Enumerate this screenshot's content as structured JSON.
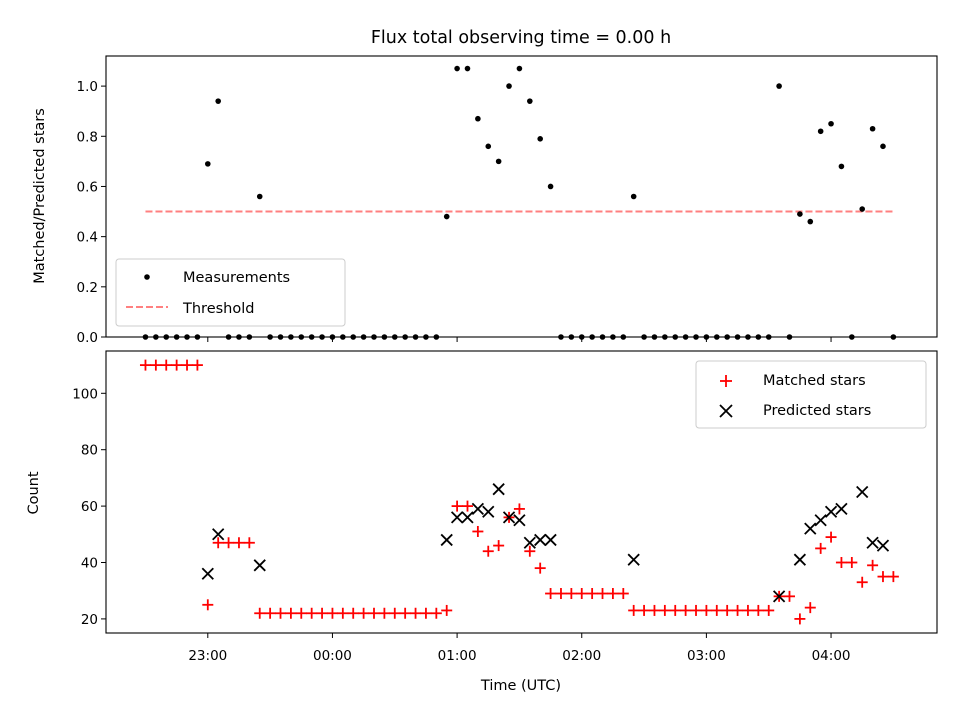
{
  "chart_data": [
    {
      "type": "scatter",
      "title": "Flux total observing time = 0.00 h",
      "xlabel": "",
      "ylabel": "Matched/Predicted stars",
      "ylim": [
        0.0,
        1.12
      ],
      "xlim": [
        "22:11",
        "04:51"
      ],
      "y_ticks": [
        "0.0",
        "0.2",
        "0.4",
        "0.6",
        "0.8",
        "1.0"
      ],
      "legend_position": "lower-left",
      "series": [
        {
          "name": "Measurements",
          "color": "#000000",
          "marker": "dot",
          "points": [
            {
              "x": "22:30",
              "y": 0
            },
            {
              "x": "22:35",
              "y": 0
            },
            {
              "x": "22:40",
              "y": 0
            },
            {
              "x": "22:45",
              "y": 0
            },
            {
              "x": "22:50",
              "y": 0
            },
            {
              "x": "22:55",
              "y": 0
            },
            {
              "x": "22:60",
              "y": 0.69
            },
            {
              "x": "23:05",
              "y": 0.94
            },
            {
              "x": "23:10",
              "y": 0
            },
            {
              "x": "23:15",
              "y": 0
            },
            {
              "x": "23:20",
              "y": 0
            },
            {
              "x": "23:25",
              "y": 0.56
            },
            {
              "x": "23:30",
              "y": 0
            },
            {
              "x": "23:35",
              "y": 0
            },
            {
              "x": "23:40",
              "y": 0
            },
            {
              "x": "23:45",
              "y": 0
            },
            {
              "x": "23:50",
              "y": 0
            },
            {
              "x": "23:55",
              "y": 0
            },
            {
              "x": "23:60",
              "y": 0
            },
            {
              "x": "00:05",
              "y": 0
            },
            {
              "x": "00:10",
              "y": 0
            },
            {
              "x": "00:15",
              "y": 0
            },
            {
              "x": "00:20",
              "y": 0
            },
            {
              "x": "00:25",
              "y": 0
            },
            {
              "x": "00:30",
              "y": 0
            },
            {
              "x": "00:35",
              "y": 0
            },
            {
              "x": "00:40",
              "y": 0
            },
            {
              "x": "00:45",
              "y": 0
            },
            {
              "x": "00:50",
              "y": 0
            },
            {
              "x": "00:55",
              "y": 0.48
            },
            {
              "x": "01:00",
              "y": 1.07
            },
            {
              "x": "01:05",
              "y": 1.07
            },
            {
              "x": "01:10",
              "y": 0.87
            },
            {
              "x": "01:15",
              "y": 0.76
            },
            {
              "x": "01:20",
              "y": 0.7
            },
            {
              "x": "01:25",
              "y": 1.0
            },
            {
              "x": "01:30",
              "y": 1.07
            },
            {
              "x": "01:35",
              "y": 0.94
            },
            {
              "x": "01:40",
              "y": 0.79
            },
            {
              "x": "01:45",
              "y": 0.6
            },
            {
              "x": "01:50",
              "y": 0
            },
            {
              "x": "01:55",
              "y": 0
            },
            {
              "x": "02:00",
              "y": 0
            },
            {
              "x": "02:05",
              "y": 0
            },
            {
              "x": "02:10",
              "y": 0
            },
            {
              "x": "02:15",
              "y": 0
            },
            {
              "x": "02:20",
              "y": 0
            },
            {
              "x": "02:25",
              "y": 0.56
            },
            {
              "x": "02:30",
              "y": 0
            },
            {
              "x": "02:35",
              "y": 0
            },
            {
              "x": "02:40",
              "y": 0
            },
            {
              "x": "02:45",
              "y": 0
            },
            {
              "x": "02:50",
              "y": 0
            },
            {
              "x": "02:55",
              "y": 0
            },
            {
              "x": "03:00",
              "y": 0
            },
            {
              "x": "03:05",
              "y": 0
            },
            {
              "x": "03:10",
              "y": 0
            },
            {
              "x": "03:15",
              "y": 0
            },
            {
              "x": "03:20",
              "y": 0
            },
            {
              "x": "03:25",
              "y": 0
            },
            {
              "x": "03:30",
              "y": 0
            },
            {
              "x": "03:35",
              "y": 1.0
            },
            {
              "x": "03:40",
              "y": 0
            },
            {
              "x": "03:45",
              "y": 0.49
            },
            {
              "x": "03:50",
              "y": 0.46
            },
            {
              "x": "03:55",
              "y": 0.82
            },
            {
              "x": "04:00",
              "y": 0.85
            },
            {
              "x": "04:05",
              "y": 0.68
            },
            {
              "x": "04:10",
              "y": 0
            },
            {
              "x": "04:15",
              "y": 0.51
            },
            {
              "x": "04:20",
              "y": 0.83
            },
            {
              "x": "04:25",
              "y": 0.76
            },
            {
              "x": "04:30",
              "y": 0
            }
          ]
        },
        {
          "name": "Threshold",
          "color": "#ff8080",
          "style": "dashed",
          "points": [
            {
              "x": "22:30",
              "y": 0.5
            },
            {
              "x": "04:30",
              "y": 0.5
            }
          ]
        }
      ]
    },
    {
      "type": "scatter",
      "title": "",
      "xlabel": "Time (UTC)",
      "ylabel": "Count",
      "ylim": [
        15,
        115
      ],
      "xlim": [
        "22:11",
        "04:51"
      ],
      "y_ticks": [
        "20",
        "40",
        "60",
        "80",
        "100"
      ],
      "x_ticks": [
        "23:00",
        "00:00",
        "01:00",
        "02:00",
        "03:00",
        "04:00"
      ],
      "legend_position": "upper-right",
      "series": [
        {
          "name": "Matched stars",
          "color": "#ff0000",
          "marker": "plus",
          "points": [
            {
              "x": "22:30",
              "y": 110
            },
            {
              "x": "22:35",
              "y": 110
            },
            {
              "x": "22:40",
              "y": 110
            },
            {
              "x": "22:45",
              "y": 110
            },
            {
              "x": "22:50",
              "y": 110
            },
            {
              "x": "22:55",
              "y": 110
            },
            {
              "x": "22:60",
              "y": 25
            },
            {
              "x": "23:05",
              "y": 47
            },
            {
              "x": "23:10",
              "y": 47
            },
            {
              "x": "23:15",
              "y": 47
            },
            {
              "x": "23:20",
              "y": 47
            },
            {
              "x": "23:25",
              "y": 22
            },
            {
              "x": "23:30",
              "y": 22
            },
            {
              "x": "23:35",
              "y": 22
            },
            {
              "x": "23:40",
              "y": 22
            },
            {
              "x": "23:45",
              "y": 22
            },
            {
              "x": "23:50",
              "y": 22
            },
            {
              "x": "23:55",
              "y": 22
            },
            {
              "x": "23:60",
              "y": 22
            },
            {
              "x": "00:05",
              "y": 22
            },
            {
              "x": "00:10",
              "y": 22
            },
            {
              "x": "00:15",
              "y": 22
            },
            {
              "x": "00:20",
              "y": 22
            },
            {
              "x": "00:25",
              "y": 22
            },
            {
              "x": "00:30",
              "y": 22
            },
            {
              "x": "00:35",
              "y": 22
            },
            {
              "x": "00:40",
              "y": 22
            },
            {
              "x": "00:45",
              "y": 22
            },
            {
              "x": "00:50",
              "y": 22
            },
            {
              "x": "00:55",
              "y": 23
            },
            {
              "x": "01:00",
              "y": 60
            },
            {
              "x": "01:05",
              "y": 60
            },
            {
              "x": "01:10",
              "y": 51
            },
            {
              "x": "01:15",
              "y": 44
            },
            {
              "x": "01:20",
              "y": 46
            },
            {
              "x": "01:25",
              "y": 56
            },
            {
              "x": "01:30",
              "y": 59
            },
            {
              "x": "01:35",
              "y": 44
            },
            {
              "x": "01:40",
              "y": 38
            },
            {
              "x": "01:45",
              "y": 29
            },
            {
              "x": "01:50",
              "y": 29
            },
            {
              "x": "01:55",
              "y": 29
            },
            {
              "x": "02:00",
              "y": 29
            },
            {
              "x": "02:05",
              "y": 29
            },
            {
              "x": "02:10",
              "y": 29
            },
            {
              "x": "02:15",
              "y": 29
            },
            {
              "x": "02:20",
              "y": 29
            },
            {
              "x": "02:25",
              "y": 23
            },
            {
              "x": "02:30",
              "y": 23
            },
            {
              "x": "02:35",
              "y": 23
            },
            {
              "x": "02:40",
              "y": 23
            },
            {
              "x": "02:45",
              "y": 23
            },
            {
              "x": "02:50",
              "y": 23
            },
            {
              "x": "02:55",
              "y": 23
            },
            {
              "x": "03:00",
              "y": 23
            },
            {
              "x": "03:05",
              "y": 23
            },
            {
              "x": "03:10",
              "y": 23
            },
            {
              "x": "03:15",
              "y": 23
            },
            {
              "x": "03:20",
              "y": 23
            },
            {
              "x": "03:25",
              "y": 23
            },
            {
              "x": "03:30",
              "y": 23
            },
            {
              "x": "03:35",
              "y": 28
            },
            {
              "x": "03:40",
              "y": 28
            },
            {
              "x": "03:45",
              "y": 20
            },
            {
              "x": "03:50",
              "y": 24
            },
            {
              "x": "03:55",
              "y": 45
            },
            {
              "x": "04:00",
              "y": 49
            },
            {
              "x": "04:05",
              "y": 40
            },
            {
              "x": "04:10",
              "y": 40
            },
            {
              "x": "04:15",
              "y": 33
            },
            {
              "x": "04:20",
              "y": 39
            },
            {
              "x": "04:25",
              "y": 35
            },
            {
              "x": "04:30",
              "y": 35
            }
          ]
        },
        {
          "name": "Predicted stars",
          "color": "#000000",
          "marker": "x",
          "points": [
            {
              "x": "22:60",
              "y": 36
            },
            {
              "x": "23:05",
              "y": 50
            },
            {
              "x": "23:25",
              "y": 39
            },
            {
              "x": "00:55",
              "y": 48
            },
            {
              "x": "01:00",
              "y": 56
            },
            {
              "x": "01:05",
              "y": 56
            },
            {
              "x": "01:10",
              "y": 59
            },
            {
              "x": "01:15",
              "y": 58
            },
            {
              "x": "01:20",
              "y": 66
            },
            {
              "x": "01:25",
              "y": 56
            },
            {
              "x": "01:30",
              "y": 55
            },
            {
              "x": "01:35",
              "y": 47
            },
            {
              "x": "01:40",
              "y": 48
            },
            {
              "x": "01:45",
              "y": 48
            },
            {
              "x": "02:25",
              "y": 41
            },
            {
              "x": "03:35",
              "y": 28
            },
            {
              "x": "03:45",
              "y": 41
            },
            {
              "x": "03:50",
              "y": 52
            },
            {
              "x": "03:55",
              "y": 55
            },
            {
              "x": "04:00",
              "y": 58
            },
            {
              "x": "04:05",
              "y": 59
            },
            {
              "x": "04:15",
              "y": 65
            },
            {
              "x": "04:20",
              "y": 47
            },
            {
              "x": "04:25",
              "y": 46
            }
          ]
        }
      ]
    }
  ]
}
